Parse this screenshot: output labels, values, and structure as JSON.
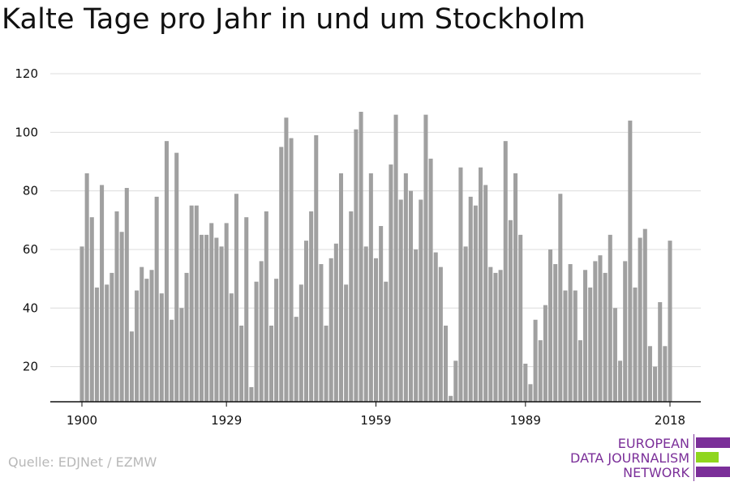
{
  "title": "Kalte Tage pro Jahr in und um Stockholm",
  "source": "Quelle: EDJNet / EZMW",
  "logo": {
    "line1": "EUROPEAN",
    "line2": "DATA JOURNALISM",
    "line3": "NETWORK",
    "purple": "#7b2f99",
    "green": "#8fd61e"
  },
  "chart_data": {
    "type": "bar",
    "x": [
      1900,
      1901,
      1902,
      1903,
      1904,
      1905,
      1906,
      1907,
      1908,
      1909,
      1910,
      1911,
      1912,
      1913,
      1914,
      1915,
      1916,
      1917,
      1918,
      1919,
      1920,
      1921,
      1922,
      1923,
      1924,
      1925,
      1926,
      1927,
      1928,
      1929,
      1930,
      1931,
      1932,
      1933,
      1934,
      1935,
      1936,
      1937,
      1938,
      1939,
      1940,
      1941,
      1942,
      1943,
      1944,
      1945,
      1946,
      1947,
      1948,
      1949,
      1950,
      1951,
      1952,
      1953,
      1954,
      1955,
      1956,
      1957,
      1958,
      1959,
      1960,
      1961,
      1962,
      1963,
      1964,
      1965,
      1966,
      1967,
      1968,
      1969,
      1970,
      1971,
      1972,
      1973,
      1974,
      1975,
      1976,
      1977,
      1978,
      1979,
      1980,
      1981,
      1982,
      1983,
      1984,
      1985,
      1986,
      1987,
      1988,
      1989,
      1990,
      1991,
      1992,
      1993,
      1994,
      1995,
      1996,
      1997,
      1998,
      1999,
      2000,
      2001,
      2002,
      2003,
      2004,
      2005,
      2006,
      2007,
      2008,
      2009,
      2010,
      2011,
      2012,
      2013,
      2014,
      2015,
      2016,
      2017,
      2018
    ],
    "values": [
      61,
      86,
      71,
      47,
      82,
      48,
      52,
      73,
      66,
      81,
      32,
      46,
      54,
      50,
      53,
      78,
      45,
      97,
      36,
      93,
      40,
      52,
      75,
      75,
      65,
      65,
      69,
      64,
      61,
      69,
      45,
      79,
      34,
      71,
      13,
      49,
      56,
      73,
      34,
      50,
      95,
      105,
      98,
      37,
      48,
      63,
      73,
      99,
      55,
      34,
      57,
      62,
      86,
      48,
      73,
      101,
      107,
      61,
      86,
      57,
      68,
      49,
      89,
      106,
      77,
      86,
      80,
      60,
      77,
      106,
      91,
      59,
      54,
      34,
      10,
      22,
      88,
      61,
      78,
      75,
      88,
      82,
      54,
      52,
      53,
      97,
      70,
      86,
      65,
      21,
      14,
      36,
      29,
      41,
      60,
      55,
      79,
      46,
      55,
      46,
      29,
      53,
      47,
      56,
      58,
      52,
      65,
      40,
      22,
      56,
      104,
      47,
      64,
      67,
      27,
      20,
      42,
      27,
      63
    ],
    "xticks": [
      1900,
      1929,
      1959,
      1989,
      2018
    ],
    "yticks": [
      20,
      40,
      60,
      80,
      100,
      120
    ],
    "ylim": [
      8,
      120
    ],
    "xlabel": "",
    "ylabel": "",
    "bar_color": "#a0a0a0",
    "grid": true
  }
}
